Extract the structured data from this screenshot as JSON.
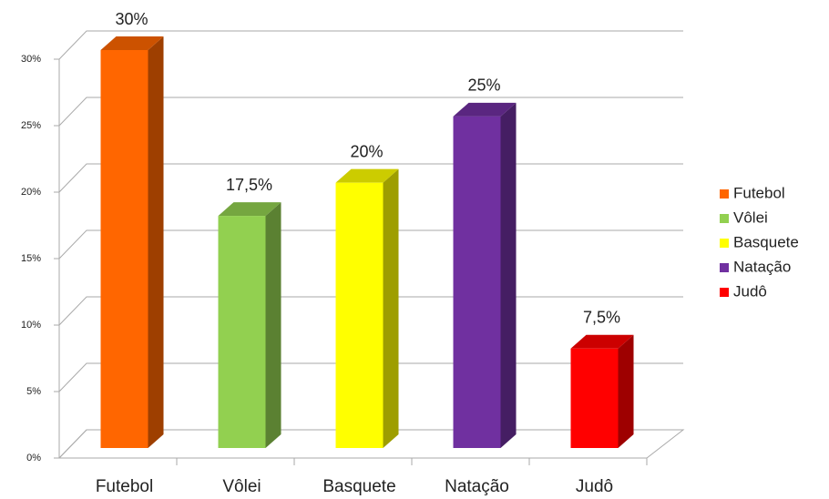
{
  "chart_data": {
    "type": "bar",
    "categories": [
      "Futebol",
      "Vôlei",
      "Basquete",
      "Natação",
      "Judô"
    ],
    "values": [
      30,
      17.5,
      20,
      25,
      7.5
    ],
    "value_labels": [
      "30%",
      "17,5%",
      "20%",
      "25%",
      "7,5%"
    ],
    "colors": [
      "#ff6600",
      "#92d050",
      "#ffff00",
      "#7030a0",
      "#ff0000"
    ],
    "ylim": [
      0,
      30
    ],
    "yticks": [
      {
        "value": 0,
        "label": "0%"
      },
      {
        "value": 5,
        "label": "5%"
      },
      {
        "value": 10,
        "label": "10%"
      },
      {
        "value": 15,
        "label": "15%"
      },
      {
        "value": 20,
        "label": "20%"
      },
      {
        "value": 25,
        "label": "25%"
      },
      {
        "value": 30,
        "label": "30%"
      }
    ],
    "grid": true,
    "legend": "right"
  }
}
